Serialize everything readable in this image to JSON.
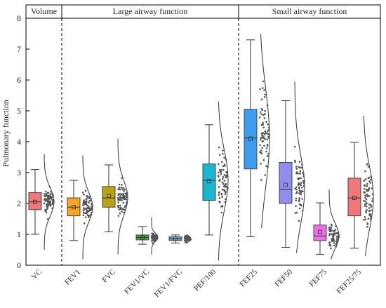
{
  "chart_data": {
    "type": "box",
    "ylabel": "Pulmonary function",
    "ylim": [
      0,
      8
    ],
    "yticks": [
      0,
      1,
      2,
      3,
      4,
      5,
      6,
      7,
      8
    ],
    "sections": [
      {
        "label": "Volume",
        "categories": [
          "VC"
        ]
      },
      {
        "label": "Large airway function",
        "categories": [
          "FEV1",
          "FVC",
          "FEV1/VC",
          "FEV1/FVC",
          "PEF/100"
        ]
      },
      {
        "label": "Small airway function",
        "categories": [
          "FEF25",
          "FEF50",
          "FEF75",
          "FEF25/75"
        ]
      }
    ],
    "boxes": [
      {
        "category": "VC",
        "color": "#f0777a",
        "whisker_low": 1.0,
        "q1": 1.8,
        "median": 2.05,
        "mean": 2.05,
        "q3": 2.35,
        "whisker_high": 3.1,
        "points_min": 0.5,
        "points_max": 3.6
      },
      {
        "category": "FEV1",
        "color": "#f5a623",
        "whisker_low": 0.8,
        "q1": 1.6,
        "median": 1.88,
        "mean": 1.88,
        "q3": 2.18,
        "whisker_high": 2.75,
        "points_min": 0.2,
        "points_max": 3.55
      },
      {
        "category": "FVC",
        "color": "#b8a416",
        "whisker_low": 1.08,
        "q1": 1.88,
        "median": 2.18,
        "mean": 2.25,
        "q3": 2.55,
        "whisker_high": 3.25,
        "points_min": 0.35,
        "points_max": 4.1
      },
      {
        "category": "FEV1/VC",
        "color": "#44a844",
        "whisker_low": 0.68,
        "q1": 0.82,
        "median": 0.9,
        "mean": 0.9,
        "q3": 0.98,
        "whisker_high": 1.25,
        "points_min": 0.35,
        "points_max": 1.55
      },
      {
        "category": "FEV1/FVC",
        "color": "#6aa0c0",
        "whisker_low": 0.72,
        "q1": 0.8,
        "median": 0.86,
        "mean": 0.86,
        "q3": 0.92,
        "whisker_high": 0.98,
        "points_min": 0.7,
        "points_max": 1.0
      },
      {
        "category": "PEF/100",
        "color": "#1ab6cf",
        "whisker_low": 0.98,
        "q1": 2.1,
        "median": 2.75,
        "mean": 2.72,
        "q3": 3.28,
        "whisker_high": 4.55,
        "points_min": 0.15,
        "points_max": 5.3
      },
      {
        "category": "FEF25",
        "color": "#3b9cf0",
        "whisker_low": 0.92,
        "q1": 3.12,
        "median": 4.12,
        "mean": 4.1,
        "q3": 5.05,
        "whisker_high": 7.3,
        "points_min": 1.2,
        "points_max": 7.5
      },
      {
        "category": "FEF50",
        "color": "#8e8eee",
        "whisker_low": 0.58,
        "q1": 2.0,
        "median": 2.45,
        "mean": 2.6,
        "q3": 3.33,
        "whisker_high": 5.33,
        "points_min": 0.4,
        "points_max": 5.95
      },
      {
        "category": "FEF75",
        "color": "#f06ce8",
        "whisker_low": 0.35,
        "q1": 0.8,
        "median": 0.95,
        "mean": 1.08,
        "q3": 1.3,
        "whisker_high": 2.02,
        "points_min": 0.2,
        "points_max": 2.45
      },
      {
        "category": "FEF25/75",
        "color": "#f0777a",
        "whisker_low": 0.55,
        "q1": 1.6,
        "median": 2.18,
        "mean": 2.18,
        "q3": 2.82,
        "whisker_high": 3.98,
        "points_min": 0.3,
        "points_max": 4.85
      }
    ]
  }
}
